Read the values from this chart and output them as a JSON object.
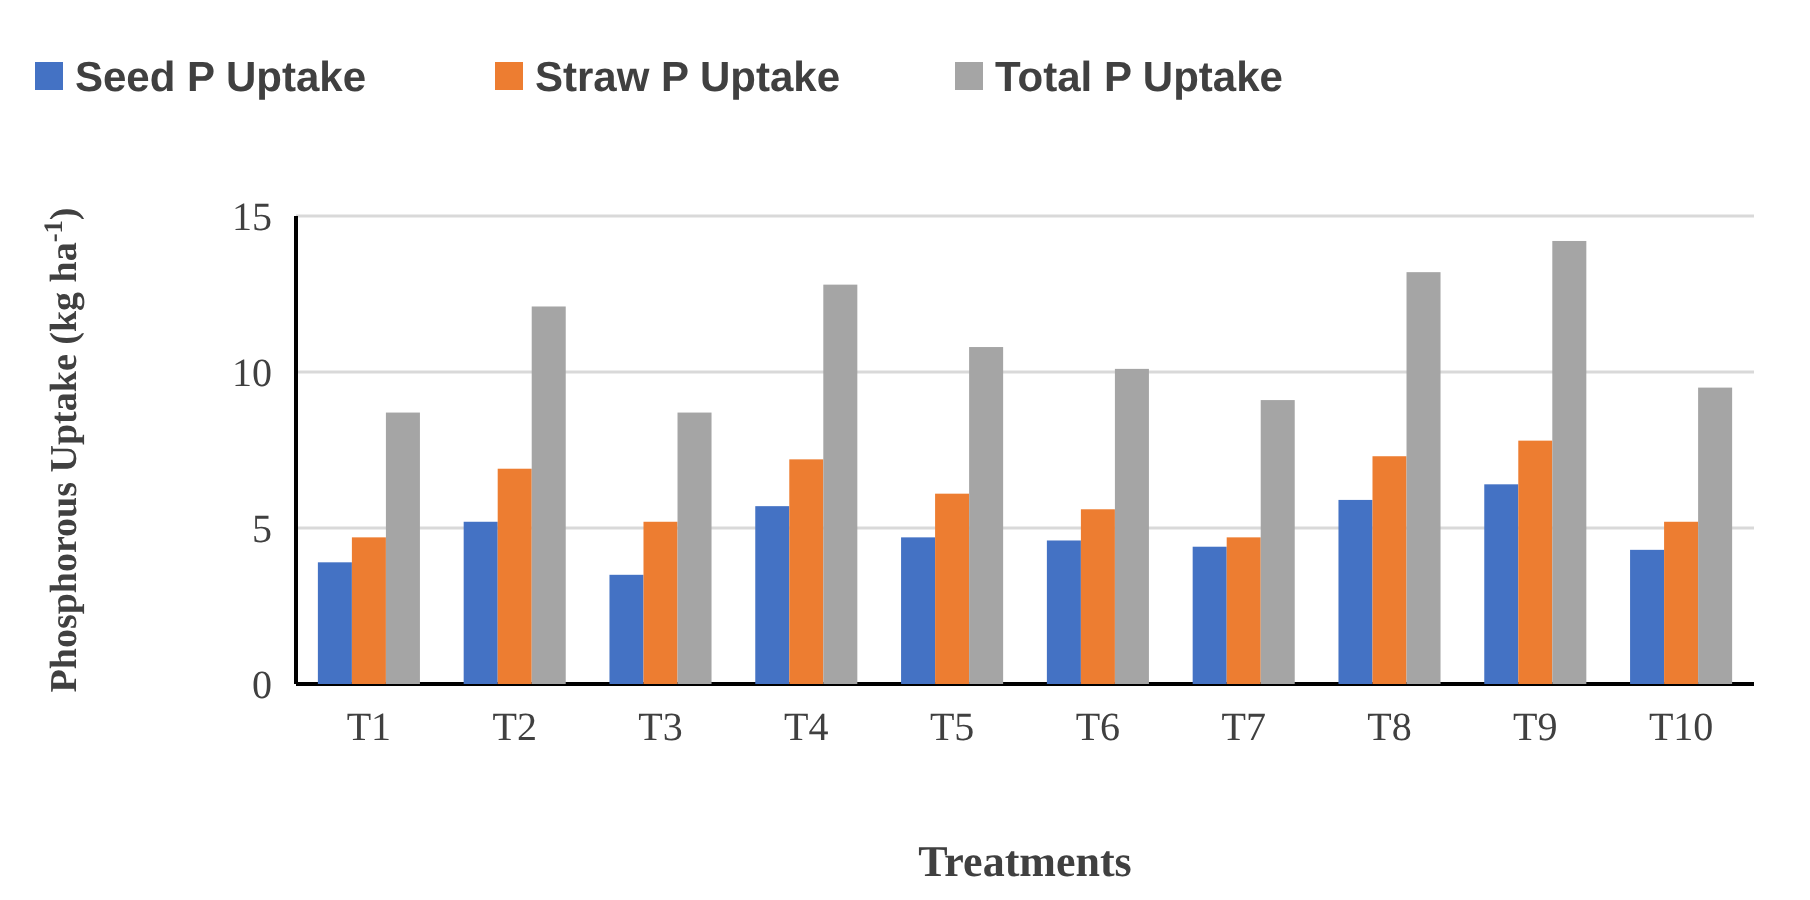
{
  "chart_data": {
    "type": "bar",
    "xlabel": "Treatments",
    "ylabel": "Phosphorous Uptake (kg ha$^{-1}$)",
    "categories": [
      "T1",
      "T2",
      "T3",
      "T4",
      "T5",
      "T6",
      "T7",
      "T8",
      "T9",
      "T10"
    ],
    "series": [
      {
        "name": "Seed P Uptake",
        "color": "#4472c4",
        "values": [
          3.9,
          5.2,
          3.5,
          5.7,
          4.7,
          4.6,
          4.4,
          5.9,
          6.4,
          4.3
        ]
      },
      {
        "name": "Straw P Uptake",
        "color": "#ed7d31",
        "values": [
          4.7,
          6.9,
          5.2,
          7.2,
          6.1,
          5.6,
          4.7,
          7.3,
          7.8,
          5.2
        ]
      },
      {
        "name": "Total P Uptake",
        "color": "#a5a5a5",
        "values": [
          8.7,
          12.1,
          8.7,
          12.8,
          10.8,
          10.1,
          9.1,
          13.2,
          14.2,
          9.5
        ]
      }
    ],
    "ylim": [
      0,
      15
    ],
    "yticks": [
      0,
      5,
      10,
      15
    ],
    "grid": "y",
    "legend": "top"
  }
}
